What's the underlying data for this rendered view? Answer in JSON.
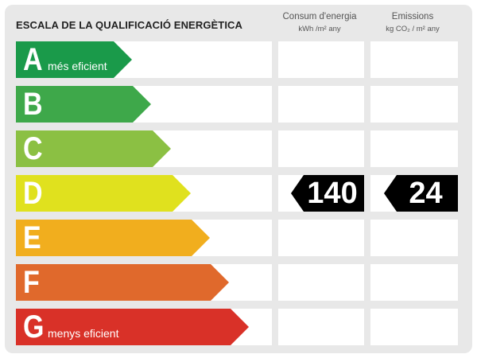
{
  "title": "ESCALA DE LA QUALIFICACIÓ ENERGÈTICA",
  "columns": {
    "consumption": {
      "title": "Consum d'energia",
      "unit": "kWh /m² any"
    },
    "emissions": {
      "title": "Emissions",
      "unit": "kg CO₂ / m² any"
    }
  },
  "ratings": [
    {
      "letter": "A",
      "label": "més eficient",
      "color": "#1a9a4a"
    },
    {
      "letter": "B",
      "label": "",
      "color": "#3ea84a"
    },
    {
      "letter": "C",
      "label": "",
      "color": "#8bc043"
    },
    {
      "letter": "D",
      "label": "",
      "color": "#e0e11e"
    },
    {
      "letter": "E",
      "label": "",
      "color": "#f1ae1e"
    },
    {
      "letter": "F",
      "label": "",
      "color": "#e0692c"
    },
    {
      "letter": "G",
      "label": "menys eficient",
      "color": "#d93128"
    }
  ],
  "current_rating": "D",
  "values": {
    "consumption": "140",
    "emissions": "24"
  }
}
